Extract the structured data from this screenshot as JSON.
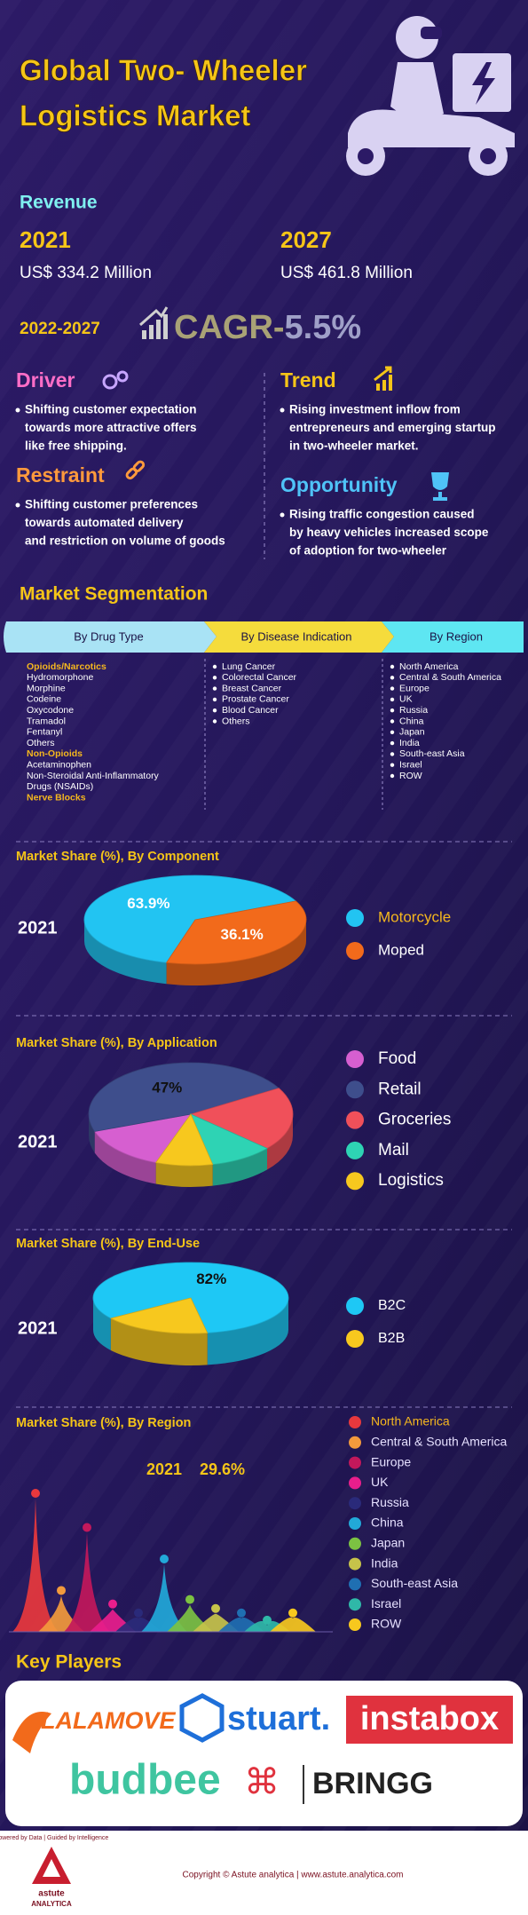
{
  "header": {
    "title_lines": [
      "Global Two- Wheeler",
      "Logistics Market"
    ]
  },
  "revenue": {
    "label": "Revenue",
    "items": [
      {
        "year": "2021",
        "value": "US$ 334.2 Million"
      },
      {
        "year": "2027",
        "value": "US$ 461.8 Million"
      }
    ]
  },
  "cagr": {
    "period": "2022-2027",
    "label": "CAGR-",
    "value": "5.5%"
  },
  "driver": {
    "title": "Driver",
    "lines": [
      "Shifting customer expectation",
      "towards more attractive offers",
      "like free shipping."
    ]
  },
  "trend": {
    "title": "Trend",
    "lines": [
      "Rising investment inflow from",
      "entrepreneurs and emerging startup",
      "in two-wheeler market."
    ]
  },
  "restraint": {
    "title": "Restraint",
    "lines": [
      "Shifting customer preferences",
      "towards automated delivery",
      "and restriction on volume of goods"
    ]
  },
  "opportunity": {
    "title": "Opportunity",
    "lines": [
      "Rising traffic congestion caused",
      "by heavy vehicles increased scope",
      "of adoption for two-wheeler"
    ]
  },
  "segmentation": {
    "title": "Market Segmentation",
    "columns": [
      {
        "title": "By Drug Type",
        "color": "#a9e3f5",
        "bullets": false,
        "items": [
          {
            "text": "Opioids/Narcotics",
            "highlight": true
          },
          {
            "text": "Hydromorphone"
          },
          {
            "text": "Morphine"
          },
          {
            "text": "Codeine"
          },
          {
            "text": "Oxycodone"
          },
          {
            "text": "Tramadol"
          },
          {
            "text": "Fentanyl"
          },
          {
            "text": "Others"
          },
          {
            "text": "Non-Opioids",
            "highlight": true
          },
          {
            "text": "Acetaminophen"
          },
          {
            "text": "Non-Steroidal Anti-Inflammatory"
          },
          {
            "text": "Drugs (NSAIDs)"
          },
          {
            "text": "Nerve Blocks",
            "highlight": true
          }
        ]
      },
      {
        "title": "By Disease Indication",
        "color": "#f5dc3c",
        "bullets": true,
        "items": [
          {
            "text": "Lung Cancer"
          },
          {
            "text": "Colorectal Cancer"
          },
          {
            "text": "Breast Cancer"
          },
          {
            "text": "Prostate Cancer"
          },
          {
            "text": "Blood Cancer"
          },
          {
            "text": "Others"
          }
        ]
      },
      {
        "title": "By Region",
        "color": "#5ee6f2",
        "bullets": true,
        "items": [
          {
            "text": "North America"
          },
          {
            "text": "Central & South America"
          },
          {
            "text": "Europe"
          },
          {
            "text": "UK"
          },
          {
            "text": "Russia"
          },
          {
            "text": "China"
          },
          {
            "text": "Japan"
          },
          {
            "text": "India"
          },
          {
            "text": "South-east Asia"
          },
          {
            "text": "Israel"
          },
          {
            "text": "ROW"
          }
        ]
      }
    ]
  },
  "component": {
    "title": "Market Share (%), By Component",
    "year": "2021",
    "slices": [
      {
        "name": "Motorcycle",
        "color": "#22c4f2",
        "value": 63.9,
        "label": "63.9%",
        "highlight": true
      },
      {
        "name": "Moped",
        "color": "#f26a1b",
        "value": 36.1,
        "label": "36.1%"
      }
    ]
  },
  "application": {
    "title": "Market Share (%), By Application",
    "year": "2021",
    "slices": [
      {
        "name": "Food",
        "color": "#d65fd0",
        "value": 14
      },
      {
        "name": "Retail",
        "color": "#3e4e8c",
        "value": 47,
        "label": "47%"
      },
      {
        "name": "Groceries",
        "color": "#f0505a",
        "value": 20
      },
      {
        "name": "Mail",
        "color": "#2ed3b4",
        "value": 10
      },
      {
        "name": "Logistics",
        "color": "#f7c81e",
        "value": 9
      }
    ]
  },
  "end_use": {
    "title": "Market Share (%), By End-Use",
    "year": "2021",
    "slices": [
      {
        "name": "B2C",
        "color": "#1ec8f5",
        "value": 82,
        "label": "82%"
      },
      {
        "name": "B2B",
        "color": "#f7c81e",
        "value": 18
      }
    ]
  },
  "region": {
    "title": "Market Share (%), By Region",
    "year": "2021",
    "top_label": "29.6%",
    "regions": [
      {
        "name": "North America",
        "color": "#e8383d",
        "value": 29.6,
        "highlight": true
      },
      {
        "name": "Central & South America",
        "color": "#f39a3c",
        "value": 8
      },
      {
        "name": "Europe",
        "color": "#c2185b",
        "value": 22
      },
      {
        "name": "UK",
        "color": "#e91e8c",
        "value": 5
      },
      {
        "name": "Russia",
        "color": "#2a2a7a",
        "value": 3
      },
      {
        "name": "China",
        "color": "#22a8d8",
        "value": 15
      },
      {
        "name": "Japan",
        "color": "#7cc242",
        "value": 6
      },
      {
        "name": "India",
        "color": "#c6c34a",
        "value": 4
      },
      {
        "name": "South-east Asia",
        "color": "#1f6fb2",
        "value": 3
      },
      {
        "name": "Israel",
        "color": "#2fb8a8",
        "value": 1.4
      },
      {
        "name": "ROW",
        "color": "#f7c81e",
        "value": 3
      }
    ]
  },
  "key_players": {
    "title": "Key Players",
    "logos": [
      "LALAMOVE",
      "stuart.",
      "instabox",
      "budbee",
      "BRINGG"
    ]
  },
  "footer": {
    "brand": "astute",
    "brand_sub": "ANALYTICA",
    "tagline": "Powered by Data | Guided by Intelligence",
    "copyright": "Copyright © Astute analytica | www.astute.analytica.com"
  }
}
